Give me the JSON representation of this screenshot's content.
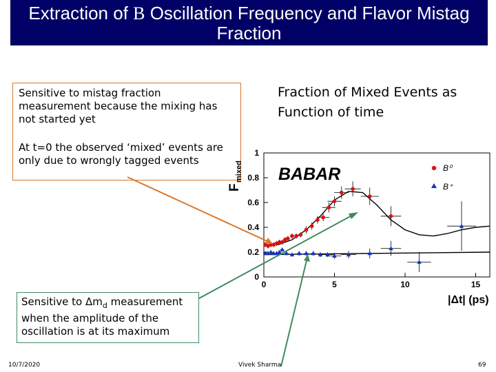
{
  "slide": {
    "title_part1": "Extraction of ",
    "title_symbol": "B",
    "title_part2": " Oscillation Frequency and Flavor Mistag Fraction",
    "callout_mistag_1": "Sensitive to mistag fraction measurement because the mixing has not started yet",
    "callout_mistag_2": "At t=0 the observed ‘mixed’ events are only due to wrongly tagged events",
    "fraction_caption_line1": "Fraction of Mixed Events as",
    "fraction_caption_line2": "Function of time",
    "callout_dm_prefix": "Sensitive to ",
    "callout_dm_symbol": "Δm",
    "callout_dm_sub": "d",
    "callout_dm_suffix": " measurement when the amplitude of the oscillation is at its maximum",
    "footer_date": "10/7/2020",
    "footer_author": "Vivek Sharma",
    "footer_page": "69"
  },
  "colors": {
    "title_bg": "#000066",
    "title_text": "#ffffff",
    "arrow_orange": "#d9772b",
    "arrow_green": "#3f8a5d",
    "b0_series": "#dd1111",
    "bplus_series": "#1133cc"
  },
  "chart_data": {
    "type": "scatter",
    "title": "",
    "xlabel": "|Δt| (ps)",
    "ylabel_main": "F",
    "ylabel_sub": "mixed",
    "logo": "BABAR",
    "xlim": [
      0,
      16
    ],
    "ylim": [
      0,
      1
    ],
    "x_ticks": [
      0,
      5,
      10,
      15
    ],
    "y_ticks": [
      0,
      0.2,
      0.4,
      0.6,
      0.8,
      1
    ],
    "y_tick_labels": [
      "0",
      "0.2",
      "0.4",
      "0.6",
      "0.8",
      "1"
    ],
    "legend_position": "top-right",
    "series": [
      {
        "name": "B⁰",
        "marker": "circle",
        "color": "#dd1111",
        "x": [
          0.1,
          0.3,
          0.5,
          0.7,
          0.9,
          1.1,
          1.3,
          1.5,
          1.7,
          2.0,
          2.3,
          2.6,
          3.0,
          3.4,
          3.8,
          4.2,
          4.6,
          5.0,
          5.5,
          6.3,
          7.5,
          9.0
        ],
        "y": [
          0.26,
          0.25,
          0.26,
          0.26,
          0.27,
          0.28,
          0.28,
          0.3,
          0.31,
          0.33,
          0.33,
          0.34,
          0.38,
          0.41,
          0.46,
          0.48,
          0.56,
          0.61,
          0.68,
          0.71,
          0.65,
          0.49
        ],
        "yerr": [
          0.02,
          0.02,
          0.02,
          0.02,
          0.02,
          0.02,
          0.02,
          0.02,
          0.02,
          0.02,
          0.02,
          0.02,
          0.03,
          0.03,
          0.03,
          0.03,
          0.04,
          0.04,
          0.05,
          0.06,
          0.07,
          0.08
        ]
      },
      {
        "name": "B⁺",
        "marker": "triangle",
        "color": "#1133cc",
        "x": [
          0.1,
          0.3,
          0.5,
          0.7,
          0.9,
          1.1,
          1.3,
          1.6,
          2.0,
          2.5,
          3.0,
          3.5,
          4.0,
          4.5,
          5.0,
          6.0,
          7.5,
          9.0,
          11.0,
          14.0
        ],
        "y": [
          0.19,
          0.19,
          0.2,
          0.19,
          0.19,
          0.2,
          0.22,
          0.19,
          0.18,
          0.19,
          0.19,
          0.19,
          0.18,
          0.18,
          0.17,
          0.18,
          0.19,
          0.23,
          0.12,
          0.41
        ],
        "yerr": [
          0.015,
          0.015,
          0.015,
          0.015,
          0.015,
          0.015,
          0.015,
          0.015,
          0.015,
          0.02,
          0.02,
          0.02,
          0.02,
          0.02,
          0.025,
          0.03,
          0.04,
          0.06,
          0.08,
          0.2
        ]
      }
    ],
    "fit_curves": [
      {
        "name": "B⁰ fit",
        "x": [
          0,
          1,
          2,
          3,
          4,
          5,
          6,
          7,
          8,
          9,
          10,
          11,
          12,
          13,
          14,
          15,
          16
        ],
        "y": [
          0.26,
          0.26,
          0.3,
          0.38,
          0.49,
          0.62,
          0.69,
          0.68,
          0.58,
          0.46,
          0.38,
          0.34,
          0.33,
          0.35,
          0.38,
          0.4,
          0.41
        ]
      },
      {
        "name": "B⁺ fit",
        "x": [
          0,
          16
        ],
        "y": [
          0.18,
          0.2
        ]
      }
    ]
  }
}
